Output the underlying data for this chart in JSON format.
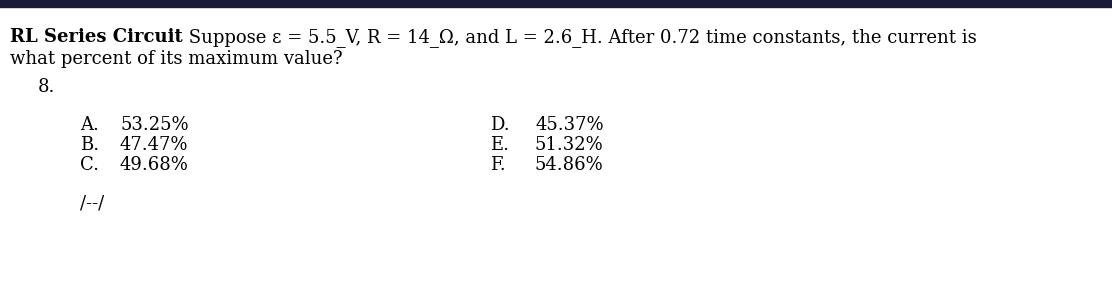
{
  "title_bold": "RL Series Circuit",
  "title_normal": " Suppose ε = 5.5_V, R = 14_Ω, and L = 2.6_H. After 0.72 time constants, the current is",
  "line2": "what percent of its maximum value?",
  "question_number": "8.",
  "options_left": [
    [
      "A.",
      "53.25%"
    ],
    [
      "B.",
      "47.47%"
    ],
    [
      "C.",
      "49.68%"
    ]
  ],
  "options_right": [
    [
      "D.",
      "45.37%"
    ],
    [
      "E.",
      "51.32%"
    ],
    [
      "F.",
      "54.86%"
    ]
  ],
  "footer": "/--/",
  "bg_color": "#ffffff",
  "text_color": "#000000",
  "top_bar_color": "#1a1a3a",
  "font_size": 13,
  "font_family": "DejaVu Serif"
}
